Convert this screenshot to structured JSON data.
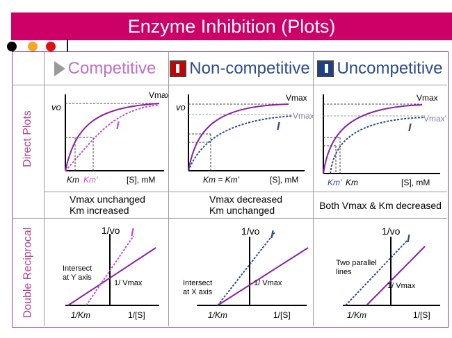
{
  "title": "Enzyme Inhibition (Plots)",
  "colors": {
    "title_bg": "#cc0066",
    "purple": "#8b1fa5",
    "blue": "#2b4a8a",
    "side": "#b0448c",
    "comp": "#c070c8",
    "noncomp": "#2b4a8a",
    "uncomp": "#2b4a8a"
  },
  "headers": {
    "competitive": "Competitive",
    "noncompetitive": "Non-competitive",
    "uncompetitive": "Uncompetitive"
  },
  "side_labels": {
    "direct": "Direct Plots",
    "reciprocal": "Double Reciprocal"
  },
  "captions": {
    "competitive": [
      "Vmax unchanged",
      "Km increased"
    ],
    "noncompetitive": [
      "Vmax decreased",
      "Km unchanged"
    ],
    "uncompetitive": [
      "Both Vmax & Km decreased"
    ]
  },
  "direct": {
    "vo": "vo",
    "vmax": "Vmax",
    "vmax_prime": "Vmax'",
    "inhibitor": "I",
    "km": "Km",
    "km_prime": "Km'",
    "s_axis": "[S], mM",
    "km_eq": "Km = Km'"
  },
  "reciprocal": {
    "y_axis": "1/vo",
    "x_neg": "1/Km",
    "x_axis": "1/[S]",
    "inv_vmax": "1/ Vmax",
    "inhibitor": "I",
    "note_comp": [
      "Intersect",
      "at Y axis"
    ],
    "note_noncomp": [
      "Intersect",
      "at X axis"
    ],
    "note_uncomp": [
      "Two parallel",
      "lines"
    ]
  }
}
